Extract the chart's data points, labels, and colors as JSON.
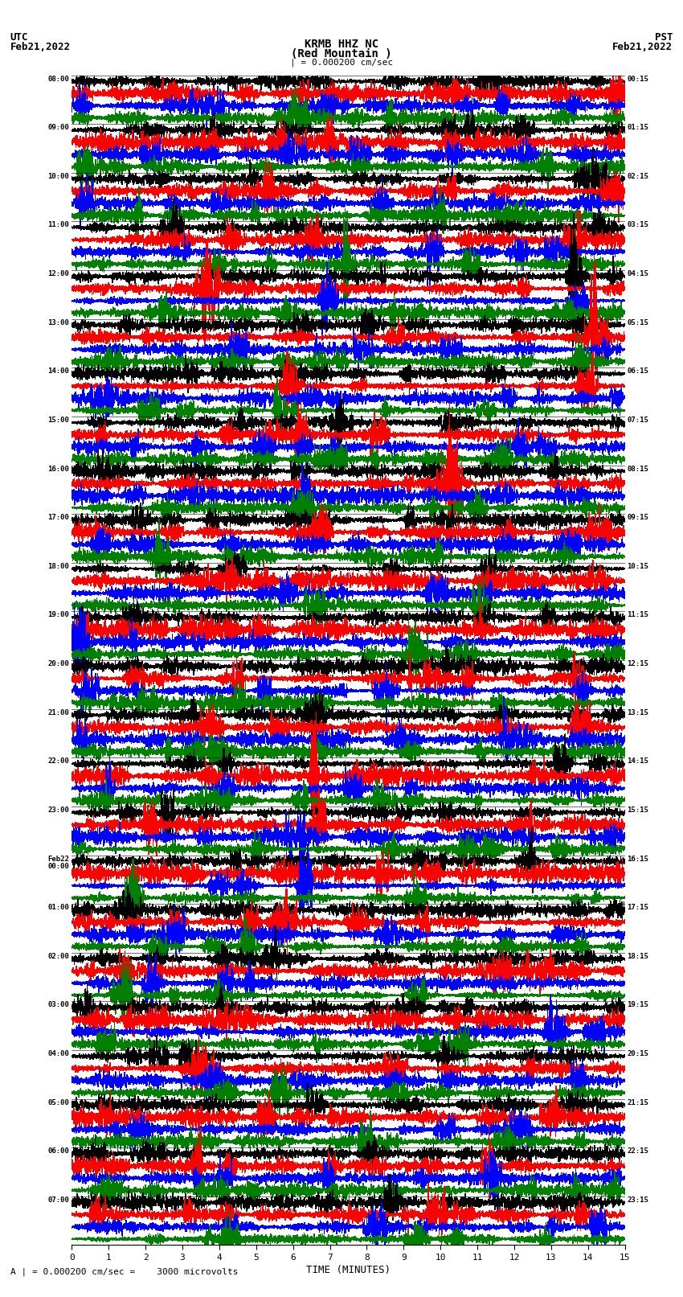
{
  "title_line1": "KRMB HHZ NC",
  "title_line2": "(Red Mountain )",
  "scale_label": "| = 0.000200 cm/sec",
  "left_header_line1": "UTC",
  "left_header_line2": "Feb21,2022",
  "right_header_line1": "PST",
  "right_header_line2": "Feb21,2022",
  "left_times": [
    "08:00",
    "09:00",
    "10:00",
    "11:00",
    "12:00",
    "13:00",
    "14:00",
    "15:00",
    "16:00",
    "17:00",
    "18:00",
    "19:00",
    "20:00",
    "21:00",
    "22:00",
    "23:00",
    "Feb22\n00:00",
    "01:00",
    "02:00",
    "03:00",
    "04:00",
    "05:00",
    "06:00",
    "07:00"
  ],
  "right_times": [
    "00:15",
    "01:15",
    "02:15",
    "03:15",
    "04:15",
    "05:15",
    "06:15",
    "07:15",
    "08:15",
    "09:15",
    "10:15",
    "11:15",
    "12:15",
    "13:15",
    "14:15",
    "15:15",
    "16:15",
    "17:15",
    "18:15",
    "19:15",
    "20:15",
    "21:15",
    "22:15",
    "23:15"
  ],
  "xlabel": "TIME (MINUTES)",
  "xticks": [
    0,
    1,
    2,
    3,
    4,
    5,
    6,
    7,
    8,
    9,
    10,
    11,
    12,
    13,
    14,
    15
  ],
  "bottom_label": "A | = 0.000200 cm/sec =    3000 microvolts",
  "colors": [
    "black",
    "red",
    "blue",
    "green"
  ],
  "n_rows": 24,
  "traces_per_row": 4,
  "fig_width": 8.5,
  "fig_height": 16.13,
  "background_color": "white",
  "line_width": 0.4,
  "amplitude_scale": 0.9
}
